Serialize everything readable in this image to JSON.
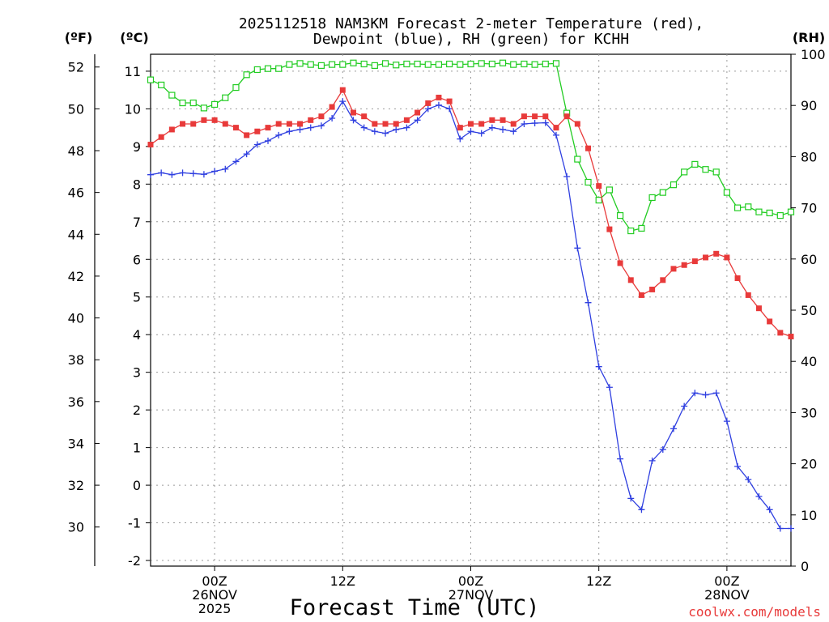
{
  "chart_data": {
    "type": "line",
    "title_line1": "2025112518 NAM3KM Forecast 2-meter Temperature (red),",
    "title_line2": "Dewpoint (blue), RH (green) for KCHH",
    "unit_f": "(ºF)",
    "unit_c": "(ºC)",
    "unit_rh": "(RH)",
    "xlabel": "Forecast Time (UTC)",
    "credit": "coolwx.com/models",
    "x_range_hours": [
      0,
      60
    ],
    "y_c_range": [
      -2.15,
      11.45
    ],
    "y_rh_range": [
      0,
      100
    ],
    "c_ticks": [
      "-2",
      "-1",
      "0",
      "1",
      "2",
      "3",
      "4",
      "5",
      "6",
      "7",
      "8",
      "9",
      "10",
      "11"
    ],
    "f_ticks": [
      "30",
      "32",
      "34",
      "36",
      "38",
      "40",
      "42",
      "44",
      "46",
      "48",
      "50",
      "52"
    ],
    "rh_ticks": [
      "0",
      "10",
      "20",
      "30",
      "40",
      "50",
      "60",
      "70",
      "80",
      "90",
      "100"
    ],
    "x_ticks": [
      {
        "hour": 6,
        "lines": [
          "00Z",
          "26NOV",
          "2025"
        ]
      },
      {
        "hour": 18,
        "lines": [
          "12Z"
        ]
      },
      {
        "hour": 30,
        "lines": [
          "00Z",
          "27NOV"
        ]
      },
      {
        "hour": 42,
        "lines": [
          "12Z"
        ]
      },
      {
        "hour": 54,
        "lines": [
          "00Z",
          "28NOV"
        ]
      }
    ],
    "series": [
      {
        "name": "Temperature",
        "color": "#e83a3a",
        "marker": "filled-square",
        "axis": "C",
        "values": [
          9.05,
          9.25,
          9.45,
          9.6,
          9.6,
          9.7,
          9.7,
          9.6,
          9.5,
          9.3,
          9.4,
          9.5,
          9.6,
          9.6,
          9.6,
          9.7,
          9.8,
          10.05,
          10.5,
          9.9,
          9.8,
          9.6,
          9.6,
          9.6,
          9.7,
          9.9,
          10.15,
          10.3,
          10.2,
          9.5,
          9.6,
          9.6,
          9.7,
          9.7,
          9.6,
          9.8,
          9.8,
          9.8,
          9.5,
          9.8,
          9.6,
          8.95,
          7.95,
          6.8,
          5.9,
          5.45,
          5.05,
          5.2,
          5.45,
          5.75,
          5.85,
          5.95,
          6.05,
          6.15,
          6.05,
          5.5,
          5.05,
          4.7,
          4.35,
          4.05,
          3.95
        ]
      },
      {
        "name": "Dewpoint",
        "color": "#2f3fe0",
        "marker": "plus",
        "axis": "C",
        "values": [
          8.25,
          8.3,
          8.25,
          8.3,
          8.28,
          8.26,
          8.34,
          8.4,
          8.6,
          8.8,
          9.05,
          9.15,
          9.3,
          9.4,
          9.45,
          9.5,
          9.55,
          9.75,
          10.2,
          9.7,
          9.5,
          9.4,
          9.35,
          9.45,
          9.5,
          9.7,
          10.0,
          10.1,
          10.0,
          9.2,
          9.4,
          9.35,
          9.5,
          9.45,
          9.4,
          9.6,
          9.62,
          9.63,
          9.3,
          8.2,
          6.3,
          4.85,
          3.15,
          2.6,
          0.7,
          -0.35,
          -0.65,
          0.65,
          0.95,
          1.5,
          2.1,
          2.45,
          2.4,
          2.45,
          1.7,
          0.5,
          0.15,
          -0.3,
          -0.65,
          -1.15,
          -1.15
        ]
      },
      {
        "name": "RH",
        "color": "#22cc22",
        "marker": "open-square",
        "axis": "RH",
        "values": [
          95,
          94,
          92,
          90.5,
          90.5,
          89.5,
          90.2,
          91.5,
          93.5,
          96,
          97,
          97.2,
          97.2,
          98,
          98.2,
          98,
          97.8,
          98,
          98,
          98.3,
          98.1,
          97.8,
          98.2,
          97.9,
          98.1,
          98.1,
          98,
          98,
          98.1,
          98,
          98.1,
          98.2,
          98.1,
          98.3,
          98,
          98.1,
          98,
          98.1,
          98.2,
          88.5,
          79.5,
          75,
          71.5,
          73.5,
          68.5,
          65.5,
          66,
          72,
          73,
          74.5,
          77,
          78.5,
          77.5,
          77,
          73,
          70,
          70.2,
          69.2,
          69,
          68.5,
          69.2
        ]
      }
    ]
  }
}
